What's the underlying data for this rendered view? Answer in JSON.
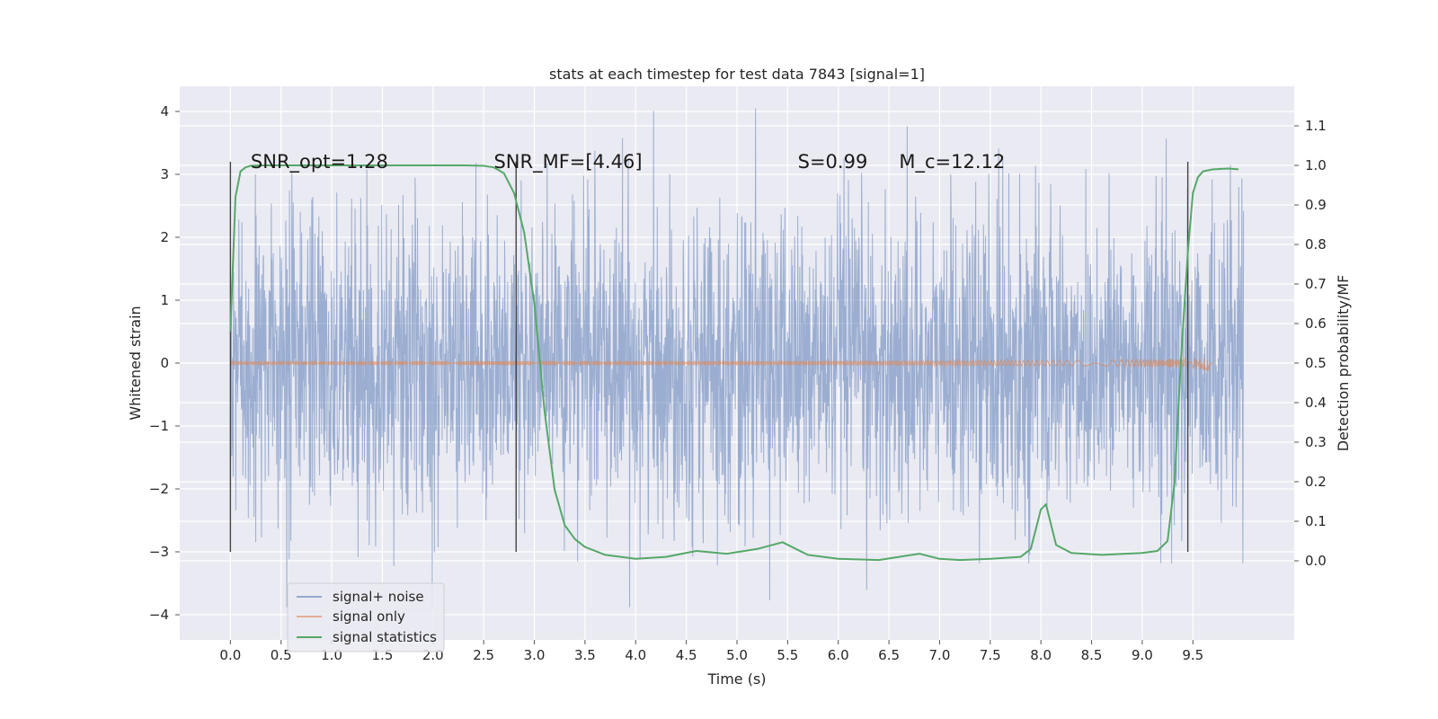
{
  "chart_data": {
    "type": "line",
    "title": "stats at each timestep for test data 7843 [signal=1]",
    "xlabel": "Time (s)",
    "ylabel_left": "Whitened strain",
    "ylabel_right": "Detection probability/MF",
    "xlim": [
      -0.5,
      10.5
    ],
    "ylim_left": [
      -4.4,
      4.4
    ],
    "ylim_right": [
      -0.2,
      1.2
    ],
    "x_ticks": [
      "0.0",
      "0.5",
      "1.0",
      "1.5",
      "2.0",
      "2.5",
      "3.0",
      "3.5",
      "4.0",
      "4.5",
      "5.0",
      "5.5",
      "6.0",
      "6.5",
      "7.0",
      "7.5",
      "8.0",
      "8.5",
      "9.0",
      "9.5"
    ],
    "y_ticks_left": [
      "4",
      "3",
      "2",
      "1",
      "0",
      "−1",
      "−2",
      "−3",
      "−4"
    ],
    "y_ticks_right": [
      "1.1",
      "1.0",
      "0.9",
      "0.8",
      "0.7",
      "0.6",
      "0.5",
      "0.4",
      "0.3",
      "0.2",
      "0.1",
      "0.0"
    ],
    "grid": true,
    "background": "#eaeaf2",
    "annotations": [
      {
        "text": "SNR_opt=1.28",
        "x": 0.2
      },
      {
        "text": "SNR_MF=[4.46]",
        "x": 2.6
      },
      {
        "text": "S=0.99",
        "x": 5.6
      },
      {
        "text": "M_c=12.12",
        "x": 6.6
      }
    ],
    "vertical_markers_x": [
      0.0,
      2.82,
      9.45
    ],
    "vertical_markers_range": [
      -3.0,
      3.2
    ],
    "legend_position": "lower left",
    "series": [
      {
        "name": "signal+ noise",
        "color": "#4c72b0",
        "opacity": 0.5,
        "axis": "left",
        "description_stats": {
          "x_range": [
            0.0,
            10.0
          ],
          "typical_amplitude": 1.2,
          "peak_high": 4.05,
          "peak_low": -3.88
        }
      },
      {
        "name": "signal only",
        "color": "#dd8452",
        "opacity": 0.6,
        "axis": "left",
        "x_range": [
          0.0,
          9.7
        ],
        "chirp_peak_x": 9.65,
        "chirp_peak_amplitude": 0.2
      },
      {
        "name": "signal statistics",
        "color": "#55a868",
        "axis": "right",
        "x": [
          0.0,
          0.05,
          0.1,
          0.15,
          0.2,
          0.3,
          0.5,
          1.0,
          1.5,
          2.0,
          2.3,
          2.5,
          2.6,
          2.7,
          2.8,
          2.9,
          3.0,
          3.1,
          3.2,
          3.3,
          3.4,
          3.5,
          3.7,
          4.0,
          4.3,
          4.6,
          4.9,
          5.2,
          5.45,
          5.7,
          6.0,
          6.4,
          6.8,
          7.0,
          7.2,
          7.5,
          7.8,
          7.9,
          8.0,
          8.05,
          8.15,
          8.3,
          8.6,
          9.0,
          9.15,
          9.25,
          9.32,
          9.38,
          9.45,
          9.5,
          9.55,
          9.6,
          9.7,
          9.85,
          9.95
        ],
        "y": [
          0.58,
          0.92,
          0.985,
          0.995,
          0.999,
          1.0,
          1.0,
          1.0,
          1.0,
          1.0,
          1.0,
          0.999,
          0.995,
          0.98,
          0.93,
          0.83,
          0.65,
          0.38,
          0.18,
          0.09,
          0.055,
          0.035,
          0.015,
          0.005,
          0.01,
          0.025,
          0.018,
          0.03,
          0.047,
          0.015,
          0.005,
          0.002,
          0.018,
          0.005,
          0.002,
          0.005,
          0.01,
          0.03,
          0.13,
          0.143,
          0.04,
          0.02,
          0.015,
          0.02,
          0.025,
          0.05,
          0.2,
          0.5,
          0.78,
          0.93,
          0.97,
          0.985,
          0.99,
          0.992,
          0.99
        ]
      }
    ]
  }
}
